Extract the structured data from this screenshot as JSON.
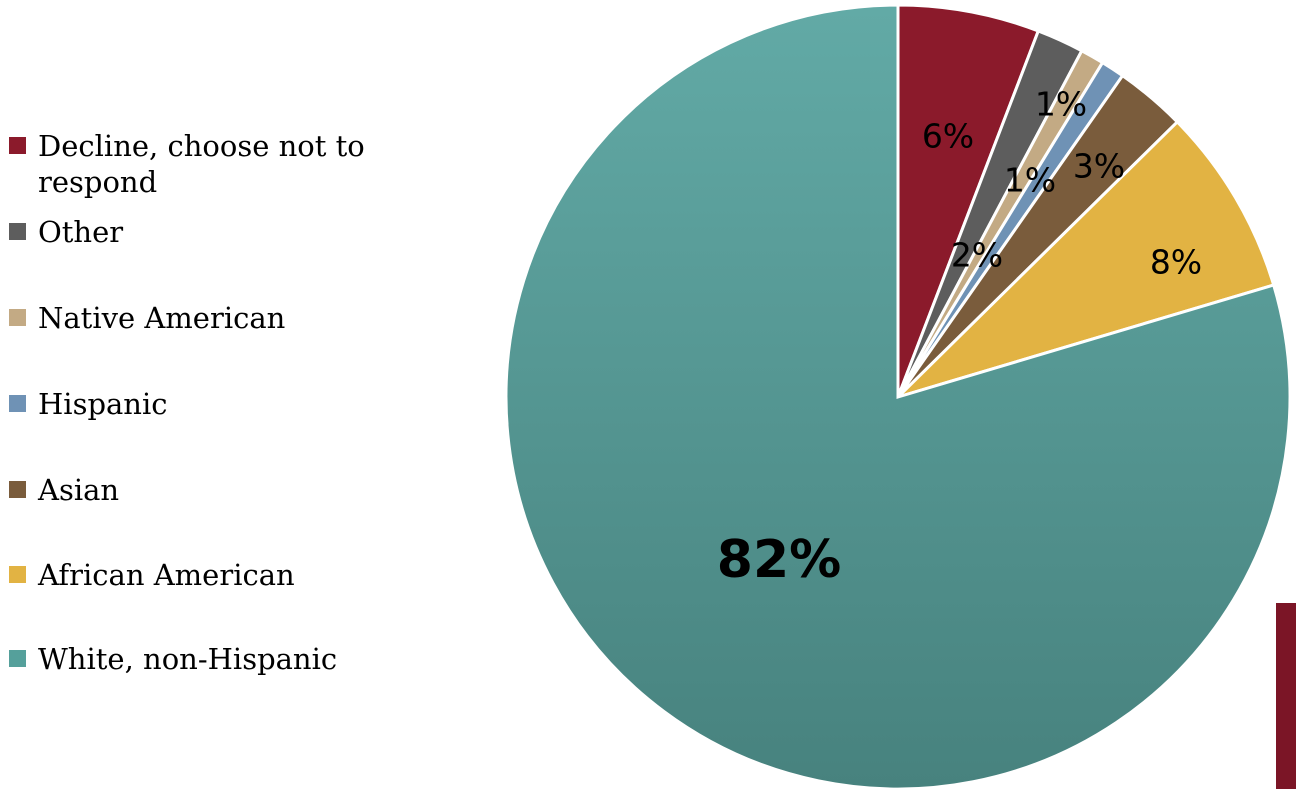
{
  "chart_data": {
    "type": "pie",
    "start_angle_deg": 0,
    "direction": "clockwise",
    "slices": [
      {
        "label": "Decline, choose not to respond",
        "value": 6,
        "display": "6%",
        "color": "#8b1a2b"
      },
      {
        "label": "Other",
        "value": 2,
        "display": "2%",
        "color": "#5d5d5d"
      },
      {
        "label": "Native American",
        "value": 1,
        "display": "1%",
        "color": "#c3aa84"
      },
      {
        "label": "Hispanic",
        "value": 1,
        "display": "1%",
        "color": "#6f92b5"
      },
      {
        "label": "Asian",
        "value": 3,
        "display": "3%",
        "color": "#7a5c3c"
      },
      {
        "label": "African American",
        "value": 8,
        "display": "8%",
        "color": "#e2b343"
      },
      {
        "label": "White, non-Hispanic",
        "value": 82,
        "display": "82%",
        "color": "#55a09b"
      }
    ],
    "legend_position": "left"
  },
  "colors": {
    "accent": "#7b1526",
    "slice_border": "#ffffff"
  }
}
